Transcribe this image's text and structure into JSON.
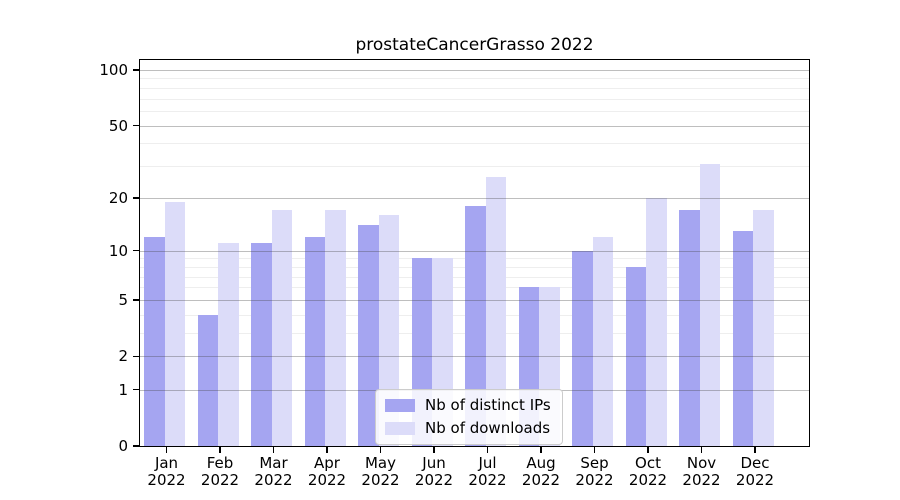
{
  "figure": {
    "title": "prostateCancerGrasso 2022"
  },
  "chart_data": {
    "type": "bar",
    "title": "prostateCancerGrasso 2022",
    "xlabel": "",
    "ylabel": "",
    "categories": [
      "Jan",
      "Feb",
      "Mar",
      "Apr",
      "May",
      "Jun",
      "Jul",
      "Aug",
      "Sep",
      "Oct",
      "Nov",
      "Dec"
    ],
    "category_year": "2022",
    "series": [
      {
        "name": "Nb of distinct IPs",
        "color": "#a5a5f1",
        "values": [
          12,
          4,
          11,
          12,
          14,
          9,
          18,
          6,
          10,
          8,
          17,
          13
        ]
      },
      {
        "name": "Nb of downloads",
        "color": "#dcdcf9",
        "values": [
          19,
          11,
          17,
          17,
          16,
          9,
          26,
          6,
          12,
          20,
          31,
          17
        ]
      }
    ],
    "yscale": "log1p",
    "ylim": [
      0,
      113
    ],
    "yticks": [
      100,
      50,
      20,
      10,
      5,
      2,
      1,
      0
    ],
    "yticks_minor": [
      3,
      4,
      6,
      7,
      8,
      9,
      30,
      40,
      60,
      70,
      80,
      90
    ],
    "grid": true,
    "grid_over_bars": true,
    "legend_position": "lower center"
  }
}
